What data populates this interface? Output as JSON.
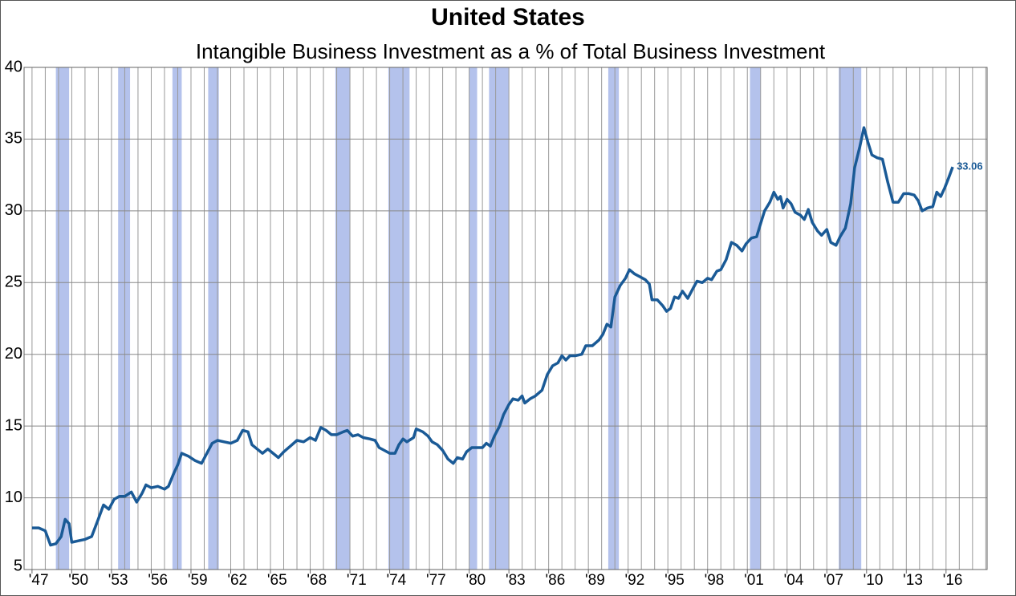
{
  "chart_data": {
    "type": "line",
    "title": "United States",
    "subtitle": "Intangible Business Investment as a % of Total Business Investment",
    "ylim": [
      5,
      40
    ],
    "yticks": [
      5,
      10,
      15,
      20,
      25,
      30,
      35,
      40
    ],
    "xlim": [
      1946.4,
      2019.1
    ],
    "xticks": [
      {
        "value": 1947,
        "label": "'47"
      },
      {
        "value": 1950,
        "label": "'50"
      },
      {
        "value": 1953,
        "label": "'53"
      },
      {
        "value": 1956,
        "label": "'56"
      },
      {
        "value": 1959,
        "label": "'59"
      },
      {
        "value": 1962,
        "label": "'62"
      },
      {
        "value": 1965,
        "label": "'65"
      },
      {
        "value": 1968,
        "label": "'68"
      },
      {
        "value": 1971,
        "label": "'71"
      },
      {
        "value": 1974,
        "label": "'74"
      },
      {
        "value": 1977,
        "label": "'77"
      },
      {
        "value": 1980,
        "label": "'80"
      },
      {
        "value": 1983,
        "label": "'83"
      },
      {
        "value": 1986,
        "label": "'86"
      },
      {
        "value": 1989,
        "label": "'89"
      },
      {
        "value": 1992,
        "label": "'92"
      },
      {
        "value": 1995,
        "label": "'95"
      },
      {
        "value": 1998,
        "label": "'98"
      },
      {
        "value": 2001,
        "label": "'01"
      },
      {
        "value": 2004,
        "label": "'04"
      },
      {
        "value": 2007,
        "label": "'07"
      },
      {
        "value": 2010,
        "label": "'10"
      },
      {
        "value": 2013,
        "label": "'13"
      },
      {
        "value": 2016,
        "label": "'16"
      }
    ],
    "x_minor_ticks": [
      1947,
      1948,
      1949,
      1950,
      1951,
      1952,
      1953,
      1954,
      1955,
      1956,
      1957,
      1958,
      1959,
      1960,
      1961,
      1962,
      1963,
      1964,
      1965,
      1966,
      1967,
      1968,
      1969,
      1970,
      1971,
      1972,
      1973,
      1974,
      1975,
      1976,
      1977,
      1978,
      1979,
      1980,
      1981,
      1982,
      1983,
      1984,
      1985,
      1986,
      1987,
      1988,
      1989,
      1990,
      1991,
      1992,
      1993,
      1994,
      1995,
      1996,
      1997,
      1998,
      1999,
      2000,
      2001,
      2002,
      2003,
      2004,
      2005,
      2006,
      2007,
      2008,
      2009,
      2010,
      2011,
      2012,
      2013,
      2014,
      2015,
      2016,
      2017,
      2018,
      2019
    ],
    "grid": true,
    "shaded_periods": [
      [
        1948.8,
        1949.8
      ],
      [
        1953.5,
        1954.4
      ],
      [
        1957.6,
        1958.3
      ],
      [
        1960.3,
        1961.1
      ],
      [
        1969.9,
        1971.0
      ],
      [
        1973.9,
        1975.5
      ],
      [
        1980.0,
        1980.6
      ],
      [
        1981.5,
        1983.0
      ],
      [
        1990.5,
        1991.3
      ],
      [
        2001.2,
        2002.0
      ],
      [
        2007.9,
        2009.6
      ]
    ],
    "shade_color": "#b4c2ec",
    "x": [
      1947.0,
      1947.5,
      1948.0,
      1948.4,
      1948.8,
      1949.2,
      1949.5,
      1949.8,
      1950.0,
      1950.5,
      1951.0,
      1951.5,
      1952.0,
      1952.4,
      1952.8,
      1953.2,
      1953.6,
      1954.0,
      1954.5,
      1954.9,
      1955.3,
      1955.6,
      1956.0,
      1956.5,
      1957.0,
      1957.3,
      1957.7,
      1958.0,
      1958.3,
      1958.8,
      1959.3,
      1959.8,
      1960.2,
      1960.6,
      1961.0,
      1961.5,
      1962.0,
      1962.5,
      1962.9,
      1963.3,
      1963.6,
      1964.0,
      1964.4,
      1964.8,
      1965.2,
      1965.6,
      1966.0,
      1966.5,
      1967.0,
      1967.5,
      1968.0,
      1968.4,
      1968.8,
      1969.2,
      1969.6,
      1970.0,
      1970.5,
      1970.8,
      1971.2,
      1971.6,
      1972.0,
      1972.5,
      1972.9,
      1973.2,
      1973.6,
      1974.0,
      1974.4,
      1974.7,
      1975.0,
      1975.3,
      1975.8,
      1976.0,
      1976.5,
      1976.9,
      1977.2,
      1977.6,
      1978.0,
      1978.4,
      1978.8,
      1979.1,
      1979.5,
      1979.8,
      1980.2,
      1980.6,
      1981.0,
      1981.3,
      1981.6,
      1981.9,
      1982.3,
      1982.6,
      1983.0,
      1983.3,
      1983.7,
      1984.0,
      1984.2,
      1984.6,
      1985.0,
      1985.5,
      1985.9,
      1986.3,
      1986.7,
      1987.0,
      1987.3,
      1987.6,
      1988.0,
      1988.5,
      1988.8,
      1989.3,
      1989.8,
      1990.1,
      1990.4,
      1990.7,
      1991.0,
      1991.4,
      1991.8,
      1992.1,
      1992.5,
      1992.9,
      1993.3,
      1993.6,
      1993.8,
      1994.2,
      1994.6,
      1994.9,
      1995.2,
      1995.5,
      1995.8,
      1996.1,
      1996.5,
      1996.9,
      1997.2,
      1997.6,
      1998.0,
      1998.3,
      1998.7,
      1999.0,
      1999.4,
      1999.8,
      2000.2,
      2000.6,
      2000.9,
      2001.3,
      2001.7,
      2002.0,
      2002.3,
      2002.7,
      2003.0,
      2003.3,
      2003.5,
      2003.7,
      2004.0,
      2004.3,
      2004.6,
      2005.0,
      2005.3,
      2005.6,
      2005.9,
      2006.3,
      2006.6,
      2007.0,
      2007.3,
      2007.7,
      2008.0,
      2008.4,
      2008.8,
      2009.1,
      2009.5,
      2009.8,
      2010.1,
      2010.4,
      2010.8,
      2011.2,
      2011.6,
      2012.0,
      2012.4,
      2012.8,
      2013.2,
      2013.6,
      2013.9,
      2014.2,
      2014.6,
      2015.0,
      2015.3,
      2015.6,
      2015.9,
      2016.2,
      2016.5
    ],
    "series": [
      {
        "color": "#1a5a96",
        "values": [
          7.9,
          7.9,
          7.7,
          6.7,
          6.8,
          7.3,
          8.5,
          8.2,
          6.9,
          7.0,
          7.1,
          7.3,
          8.5,
          9.5,
          9.2,
          9.9,
          10.1,
          10.1,
          10.4,
          9.7,
          10.3,
          10.9,
          10.7,
          10.8,
          10.6,
          10.8,
          11.7,
          12.3,
          13.1,
          12.9,
          12.6,
          12.4,
          13.1,
          13.8,
          14.0,
          13.9,
          13.8,
          14.0,
          14.7,
          14.6,
          13.7,
          13.4,
          13.1,
          13.4,
          13.1,
          12.8,
          13.2,
          13.6,
          14.0,
          13.9,
          14.2,
          14.0,
          14.9,
          14.7,
          14.4,
          14.4,
          14.6,
          14.7,
          14.3,
          14.4,
          14.2,
          14.1,
          14.0,
          13.5,
          13.3,
          13.1,
          13.1,
          13.7,
          14.1,
          13.9,
          14.2,
          14.8,
          14.6,
          14.3,
          13.9,
          13.7,
          13.3,
          12.7,
          12.4,
          12.8,
          12.7,
          13.2,
          13.5,
          13.5,
          13.5,
          13.8,
          13.6,
          14.3,
          15.0,
          15.8,
          16.5,
          16.9,
          16.8,
          17.1,
          16.6,
          16.9,
          17.1,
          17.5,
          18.6,
          19.2,
          19.4,
          19.9,
          19.6,
          19.9,
          19.9,
          20.0,
          20.6,
          20.6,
          21.0,
          21.4,
          22.1,
          21.9,
          24.0,
          24.8,
          25.3,
          25.9,
          25.6,
          25.4,
          25.2,
          24.9,
          23.8,
          23.8,
          23.4,
          23.0,
          23.2,
          24.0,
          23.9,
          24.4,
          23.9,
          24.6,
          25.1,
          25.0,
          25.3,
          25.2,
          25.8,
          25.9,
          26.6,
          27.8,
          27.6,
          27.2,
          27.7,
          28.1,
          28.2,
          29.1,
          30.0,
          30.6,
          31.3,
          30.8,
          31.0,
          30.2,
          30.8,
          30.5,
          29.9,
          29.7,
          29.4,
          30.1,
          29.2,
          28.6,
          28.3,
          28.7,
          27.8,
          27.6,
          28.2,
          28.8,
          30.5,
          33.0,
          34.5,
          35.8,
          34.8,
          33.9,
          33.7,
          33.6,
          32.0,
          30.6,
          30.6,
          31.2,
          31.2,
          31.1,
          30.7,
          30.0,
          30.2,
          30.3,
          31.3,
          31.0,
          31.6,
          32.3,
          33.06
        ]
      }
    ]
  }
}
